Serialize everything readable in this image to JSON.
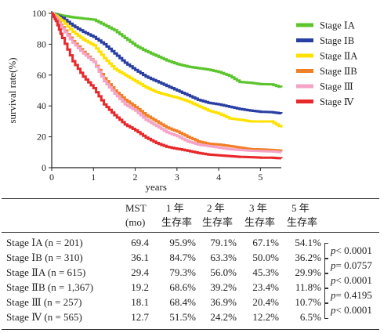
{
  "chart_data": {
    "type": "line",
    "title": "",
    "xlabel": "years",
    "ylabel": "survival rate(%)",
    "xlim": [
      0,
      5.5
    ],
    "ylim": [
      0,
      100
    ],
    "xticks": [
      0,
      1,
      2,
      3,
      4,
      5
    ],
    "yticks": [
      0,
      20,
      40,
      60,
      80,
      100
    ],
    "legend_position": "top-right",
    "series": [
      {
        "name": "Stage ⅠA",
        "color": "#5cc52e",
        "x": [
          0,
          0.1,
          0.25,
          0.5,
          0.75,
          1.0,
          1.25,
          1.5,
          1.75,
          2.0,
          2.25,
          2.5,
          2.75,
          3.0,
          3.25,
          3.5,
          3.75,
          4.0,
          4.25,
          4.5,
          4.75,
          5.0,
          5.25,
          5.5
        ],
        "y": [
          100,
          99.5,
          98.5,
          97.4,
          96.6,
          95.9,
          92.5,
          89,
          84,
          79.1,
          75.5,
          72.5,
          69.5,
          67.1,
          65.5,
          64.5,
          63.5,
          62,
          59.5,
          55.5,
          55,
          54.1,
          54,
          52
        ]
      },
      {
        "name": "Stage ⅠB",
        "color": "#2a3fa3",
        "x": [
          0,
          0.1,
          0.25,
          0.5,
          0.75,
          1.0,
          1.25,
          1.5,
          1.75,
          2.0,
          2.25,
          2.5,
          2.75,
          3.0,
          3.25,
          3.5,
          3.75,
          4.0,
          4.25,
          4.5,
          4.75,
          5.0,
          5.25,
          5.5
        ],
        "y": [
          100,
          99,
          97,
          92,
          88,
          84.7,
          80,
          74,
          68,
          63.3,
          59,
          56,
          53,
          50,
          47,
          44,
          42,
          41,
          39.5,
          38,
          37,
          36.2,
          36,
          35
        ]
      },
      {
        "name": "Stage ⅡA",
        "color": "#ffe100",
        "x": [
          0,
          0.1,
          0.25,
          0.5,
          0.75,
          1.0,
          1.25,
          1.5,
          1.75,
          2.0,
          2.25,
          2.5,
          2.75,
          3.0,
          3.25,
          3.5,
          3.75,
          4.0,
          4.25,
          4.5,
          4.75,
          5.0,
          5.25,
          5.5
        ],
        "y": [
          100,
          98.5,
          95,
          88,
          83,
          79.3,
          71,
          64,
          60,
          56,
          52,
          49,
          47,
          45.3,
          43,
          40,
          37,
          35,
          32,
          31,
          30,
          29.9,
          30,
          26
        ]
      },
      {
        "name": "Stage ⅡB",
        "color": "#f07f26",
        "x": [
          0,
          0.1,
          0.25,
          0.5,
          0.75,
          1.0,
          1.25,
          1.5,
          1.75,
          2.0,
          2.25,
          2.5,
          2.75,
          3.0,
          3.25,
          3.5,
          3.75,
          4.0,
          4.25,
          4.5,
          4.75,
          5.0,
          5.25,
          5.5
        ],
        "y": [
          100,
          97,
          91,
          82,
          75,
          68.6,
          58,
          50,
          44,
          39.2,
          34,
          30,
          26,
          23.4,
          20,
          17,
          15.5,
          15,
          14,
          13,
          12,
          11.8,
          11.5,
          11
        ]
      },
      {
        "name": "Stage Ⅲ",
        "color": "#f5a3c7",
        "x": [
          0,
          0.1,
          0.25,
          0.5,
          0.75,
          1.0,
          1.25,
          1.5,
          1.75,
          2.0,
          2.25,
          2.5,
          2.75,
          3.0,
          3.25,
          3.5,
          3.75,
          4.0,
          4.25,
          4.5,
          4.75,
          5.0,
          5.25,
          5.5
        ],
        "y": [
          100,
          97,
          90,
          81,
          74,
          68.4,
          56,
          48,
          41,
          36.9,
          31,
          27,
          23,
          20.4,
          17,
          15,
          14,
          13,
          12,
          11.5,
          11,
          10.7,
          10.5,
          10
        ]
      },
      {
        "name": "Stage Ⅳ",
        "color": "#e8282b",
        "x": [
          0,
          0.1,
          0.25,
          0.5,
          0.75,
          1.0,
          1.25,
          1.5,
          1.75,
          2.0,
          2.25,
          2.5,
          2.75,
          3.0,
          3.25,
          3.5,
          3.75,
          4.0,
          4.25,
          4.5,
          4.75,
          5.0,
          5.25,
          5.5
        ],
        "y": [
          100,
          95,
          84,
          69,
          59,
          51.5,
          41,
          34,
          28,
          24.2,
          19.5,
          16,
          13.5,
          12.2,
          11,
          9.5,
          8.5,
          8,
          7.5,
          7,
          6.8,
          6.5,
          6.5,
          6
        ]
      }
    ]
  },
  "table": {
    "headers": {
      "mst": [
        "MST",
        "(mo)"
      ],
      "y1": [
        "1 年",
        "生存率"
      ],
      "y2": [
        "2 年",
        "生存率"
      ],
      "y3": [
        "3 年",
        "生存率"
      ],
      "y5": [
        "5 年",
        "生存率"
      ]
    },
    "rows": [
      {
        "stage": "Stage ⅠA (n = 201)",
        "mst": "69.4",
        "y1": "95.9%",
        "y2": "79.1%",
        "y3": "67.1%",
        "y5": "54.1%"
      },
      {
        "stage": "Stage ⅠB (n = 310)",
        "mst": "36.1",
        "y1": "84.7%",
        "y2": "63.3%",
        "y3": "50.0%",
        "y5": "36.2%"
      },
      {
        "stage": "Stage ⅡA (n = 615)",
        "mst": "29.4",
        "y1": "79.3%",
        "y2": "56.0%",
        "y3": "45.3%",
        "y5": "29.9%"
      },
      {
        "stage": "Stage ⅡB (n = 1,367)",
        "mst": "19.2",
        "y1": "68.6%",
        "y2": "39.2%",
        "y3": "23.4%",
        "y5": "11.8%"
      },
      {
        "stage": "Stage Ⅲ (n = 257)",
        "mst": "18.1",
        "y1": "68.4%",
        "y2": "36.9%",
        "y3": "20.4%",
        "y5": "10.7%"
      },
      {
        "stage": "Stage Ⅳ (n = 565)",
        "mst": "12.7",
        "y1": "51.5%",
        "y2": "24.2%",
        "y3": "12.2%",
        "y5": "6.5%"
      }
    ],
    "pvalues": [
      {
        "p": "p",
        "rest": "< 0.0001"
      },
      {
        "p": "p",
        "rest": "= 0.0757"
      },
      {
        "p": "p",
        "rest": "< 0.0001"
      },
      {
        "p": "p",
        "rest": "= 0.4195"
      },
      {
        "p": "p",
        "rest": "< 0.0001"
      }
    ]
  }
}
